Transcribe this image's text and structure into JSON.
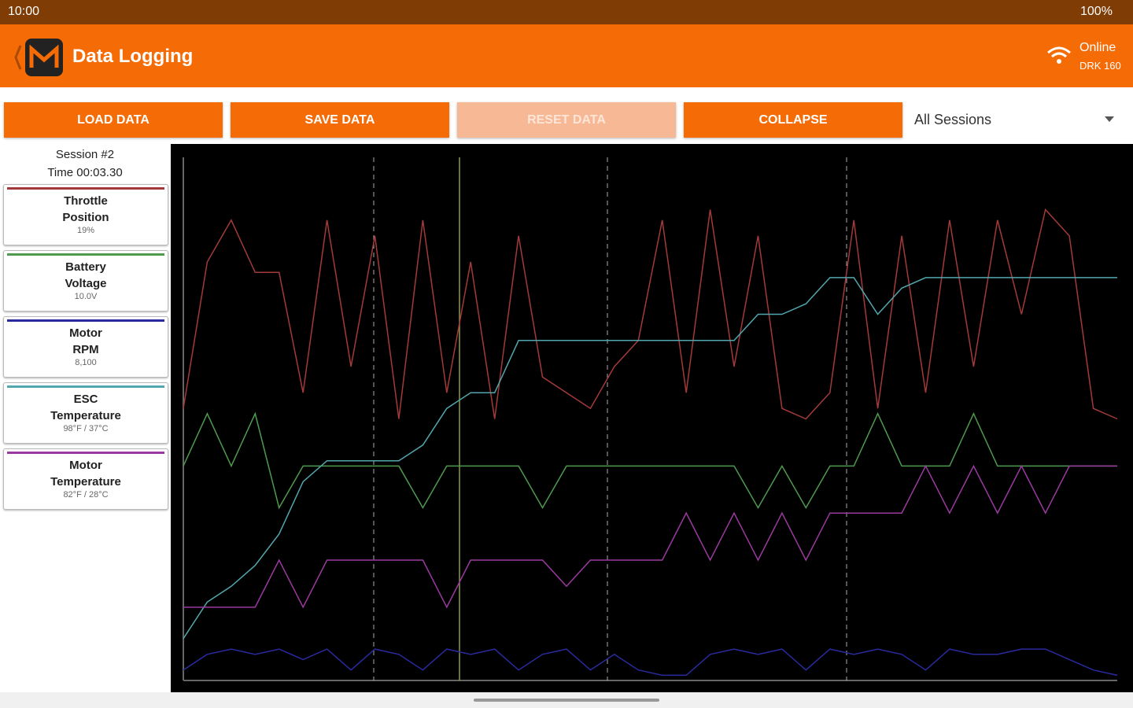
{
  "status_bar": {
    "time": "10:00",
    "battery": "100%"
  },
  "app_bar": {
    "title": "Data Logging",
    "status": "Online",
    "device": "DRK 160"
  },
  "buttons": [
    "LOAD DATA",
    "SAVE DATA",
    "RESET DATA",
    "COLLAPSE"
  ],
  "session_select": "All Sessions",
  "session": {
    "name": "Session #2",
    "time": "Time 00:03.30"
  },
  "chart_data": {
    "type": "line",
    "series": [
      {
        "name": "Throttle Position",
        "reading": "19%",
        "color": "#a33a3a",
        "values": [
          52,
          80,
          88,
          78,
          78,
          55,
          88,
          60,
          85,
          50,
          88,
          55,
          80,
          50,
          85,
          58,
          55,
          52,
          60,
          65,
          88,
          55,
          90,
          60,
          85,
          52,
          50,
          55,
          88,
          52,
          85,
          55,
          88,
          60,
          88,
          70,
          90,
          85,
          52,
          50
        ]
      },
      {
        "name": "Battery Voltage",
        "reading": "10.0V",
        "color": "#4e9a4e",
        "values": [
          41,
          51,
          41,
          51,
          33,
          41,
          41,
          41,
          41,
          41,
          33,
          41,
          41,
          41,
          41,
          33,
          41,
          41,
          41,
          41,
          41,
          41,
          41,
          41,
          33,
          41,
          33,
          41,
          41,
          51,
          41,
          41,
          41,
          51,
          41,
          41,
          41,
          41,
          41,
          41
        ]
      },
      {
        "name": "Motor RPM",
        "reading": "8,100",
        "color": "#2a2aa0",
        "values": [
          2,
          5,
          6,
          5,
          6,
          4,
          6,
          2,
          6,
          5,
          2,
          6,
          5,
          6,
          2,
          5,
          6,
          2,
          5,
          2,
          1,
          1,
          5,
          6,
          5,
          6,
          2,
          6,
          5,
          6,
          5,
          2,
          6,
          5,
          5,
          6,
          6,
          4,
          2,
          1
        ]
      },
      {
        "name": "ESC Temperature",
        "reading": "98°F / 37°C",
        "color": "#52a6ad",
        "values": [
          8,
          15,
          18,
          22,
          28,
          38,
          42,
          42,
          42,
          42,
          45,
          52,
          55,
          55,
          65,
          65,
          65,
          65,
          65,
          65,
          65,
          65,
          65,
          65,
          70,
          70,
          72,
          77,
          77,
          70,
          75,
          77,
          77,
          77,
          77,
          77,
          77,
          77,
          77,
          77
        ]
      },
      {
        "name": "Motor Temperature",
        "reading": "82°F / 28°C",
        "color": "#9a3aa0",
        "values": [
          14,
          14,
          14,
          14,
          23,
          14,
          23,
          23,
          23,
          23,
          23,
          14,
          23,
          23,
          23,
          23,
          18,
          23,
          23,
          23,
          23,
          32,
          23,
          32,
          23,
          32,
          23,
          32,
          32,
          32,
          32,
          41,
          32,
          41,
          32,
          41,
          32,
          41,
          41,
          41
        ]
      }
    ]
  }
}
